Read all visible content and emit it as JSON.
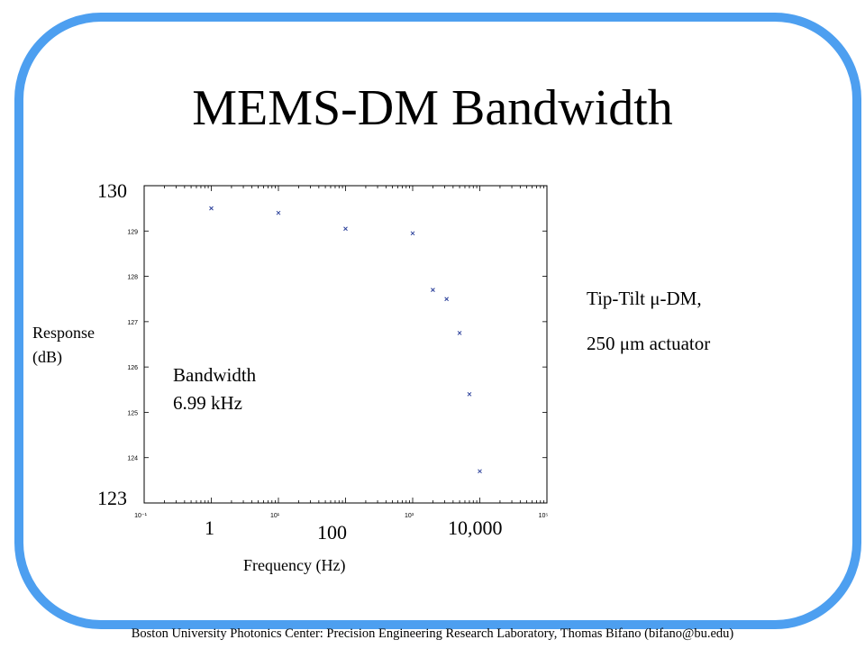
{
  "slide": {
    "border_color": "#4d9ff0",
    "title": "MEMS-DM Bandwidth"
  },
  "chart_data": {
    "type": "scatter",
    "x_scale": "log",
    "xlabel": "Frequency (Hz)",
    "ylabel_line1": "Response",
    "ylabel_line2": "(dB)",
    "xlim": [
      0.1,
      100000
    ],
    "ylim": [
      123,
      130
    ],
    "y_axis_end_labels": [
      "130",
      "123"
    ],
    "x_big_tick_labels": [
      {
        "value": 1,
        "label": "1"
      },
      {
        "value": 100,
        "label": "100"
      },
      {
        "value": 10000,
        "label": "10,000"
      }
    ],
    "x_small_tick_labels": [
      {
        "value": 0.1,
        "label": "10⁻¹"
      },
      {
        "value": 10,
        "label": "10¹"
      },
      {
        "value": 1000,
        "label": "10³"
      },
      {
        "value": 100000,
        "label": "10⁵"
      }
    ],
    "y_small_tick_labels": [
      "129",
      "128",
      "127",
      "126",
      "125",
      "124"
    ],
    "marker_color": "#2a3f9a",
    "points": [
      {
        "x": 1,
        "y": 129.5
      },
      {
        "x": 10,
        "y": 129.4
      },
      {
        "x": 100,
        "y": 129.05
      },
      {
        "x": 1000,
        "y": 128.95
      },
      {
        "x": 2000,
        "y": 127.7
      },
      {
        "x": 3200,
        "y": 127.5
      },
      {
        "x": 5000,
        "y": 126.75
      },
      {
        "x": 7000,
        "y": 125.4
      },
      {
        "x": 10000,
        "y": 123.7
      }
    ],
    "annotation": {
      "line1": "Bandwidth",
      "line2": "6.99 kHz"
    }
  },
  "right_note": {
    "line1": "Tip-Tilt μ-DM,",
    "line2": "250 μm actuator"
  },
  "footer": "Boston University Photonics Center: Precision Engineering Research Laboratory, Thomas Bifano (bifano@bu.edu)"
}
